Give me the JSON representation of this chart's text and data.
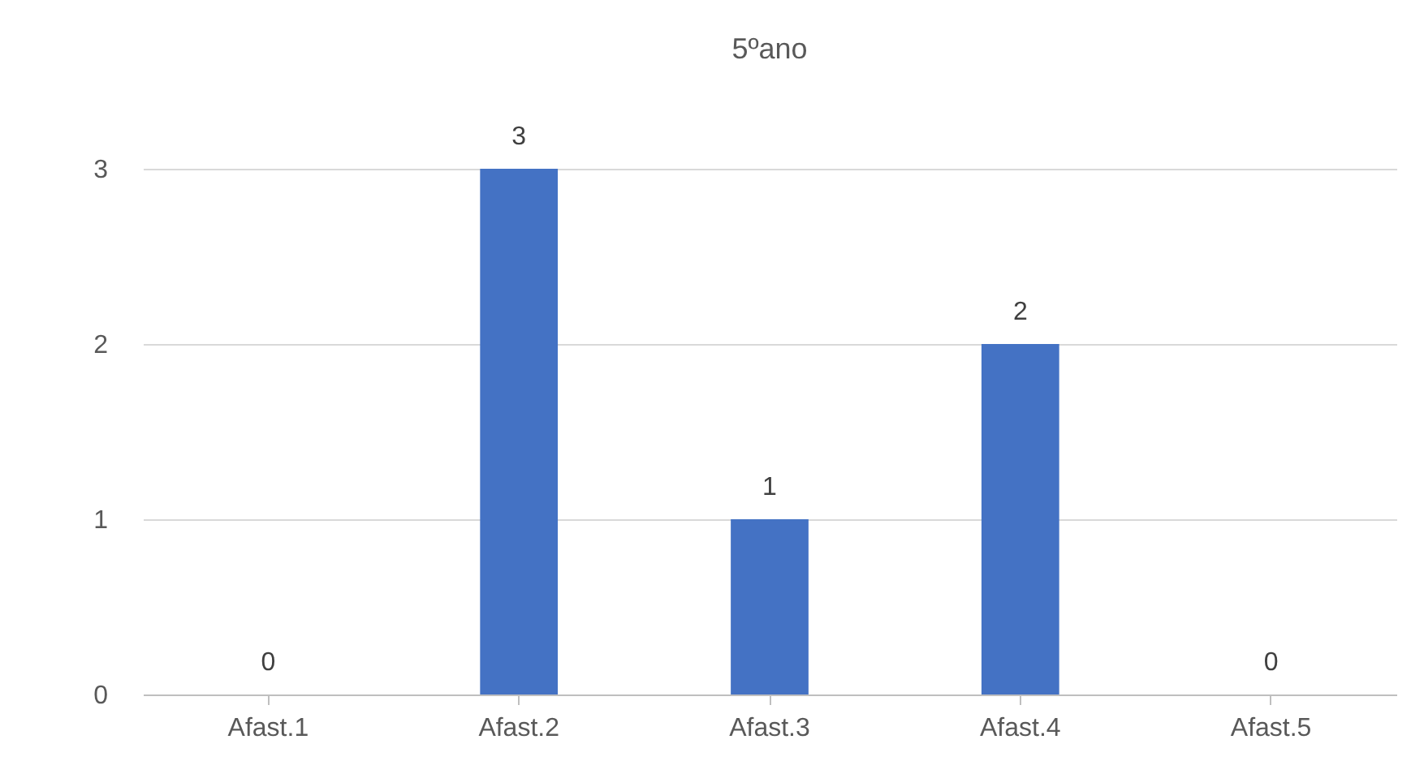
{
  "chart_data": {
    "type": "bar",
    "title": "5ºano",
    "categories": [
      "Afast.1",
      "Afast.2",
      "Afast.3",
      "Afast.4",
      "Afast.5"
    ],
    "values": [
      0,
      3,
      1,
      2,
      0
    ],
    "color": "#4472c4",
    "ylim": [
      0,
      3
    ],
    "yticks": [
      0,
      1,
      2,
      3
    ],
    "grid": "y",
    "data_labels": true
  }
}
